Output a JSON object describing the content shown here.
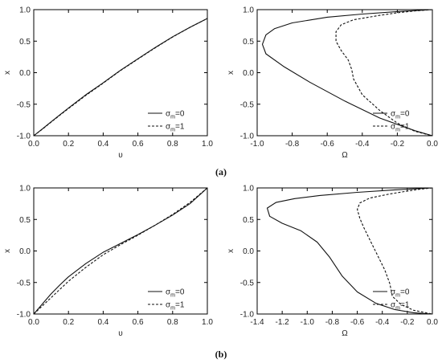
{
  "captions": [
    "(a)",
    "(b)"
  ],
  "chart_data": [
    {
      "type": "line",
      "panel": "a-left",
      "xlabel": "υ",
      "ylabel": "x",
      "xlim": [
        0.0,
        1.0
      ],
      "ylim": [
        -1.0,
        1.0
      ],
      "xticks": [
        "0.0",
        "0.2",
        "0.4",
        "0.6",
        "0.8",
        "1.0"
      ],
      "yticks": [
        "-1.0",
        "-0.5",
        "0.0",
        "0.5",
        "1.0"
      ],
      "legend_position": "bottom-right",
      "series": [
        {
          "name": "σm=0",
          "legend_main": "σ",
          "legend_sub": "m",
          "legend_rest": "=0",
          "style": "solid",
          "x": [
            0.0,
            0.05,
            0.1,
            0.15,
            0.2,
            0.3,
            0.4,
            0.5,
            0.6,
            0.7,
            0.8,
            0.9,
            1.0
          ],
          "y": [
            -1.0,
            -0.89,
            -0.78,
            -0.67,
            -0.56,
            -0.35,
            -0.16,
            0.04,
            0.22,
            0.4,
            0.57,
            0.72,
            0.86
          ]
        },
        {
          "name": "σm=1",
          "legend_main": "σ",
          "legend_sub": "m",
          "legend_rest": "=1",
          "style": "dashed",
          "x": [
            0.0,
            0.05,
            0.1,
            0.15,
            0.2,
            0.3,
            0.4,
            0.5,
            0.6,
            0.7,
            0.8,
            0.9,
            1.0
          ],
          "y": [
            -1.0,
            -0.895,
            -0.785,
            -0.675,
            -0.57,
            -0.36,
            -0.165,
            0.035,
            0.215,
            0.395,
            0.565,
            0.72,
            0.86
          ]
        }
      ]
    },
    {
      "type": "line",
      "panel": "a-right",
      "xlabel": "Ω",
      "ylabel": "x",
      "xlim": [
        -1.0,
        0.0
      ],
      "ylim": [
        -1.0,
        1.0
      ],
      "xticks": [
        "-1.0",
        "-0.8",
        "-0.6",
        "-0.4",
        "-0.2",
        "0.0"
      ],
      "yticks": [
        "-1.0",
        "-0.5",
        "0.0",
        "0.5",
        "1.0"
      ],
      "legend_position": "bottom-right",
      "series": [
        {
          "name": "σm=0",
          "legend_main": "σ",
          "legend_sub": "m",
          "legend_rest": "=0",
          "style": "solid",
          "x": [
            0.0,
            -0.2,
            -0.4,
            -0.6,
            -0.8,
            -0.9,
            -0.95,
            -0.97,
            -0.95,
            -0.85,
            -0.7,
            -0.5,
            -0.3,
            -0.1,
            0.0
          ],
          "y": [
            1.0,
            0.97,
            0.93,
            0.88,
            0.79,
            0.7,
            0.6,
            0.45,
            0.3,
            0.1,
            -0.15,
            -0.45,
            -0.72,
            -0.92,
            -1.0
          ]
        },
        {
          "name": "σm=1",
          "legend_main": "σ",
          "legend_sub": "m",
          "legend_rest": "=1",
          "style": "dashed",
          "x": [
            0.0,
            -0.1,
            -0.2,
            -0.3,
            -0.45,
            -0.52,
            -0.55,
            -0.55,
            -0.52,
            -0.48,
            -0.46,
            -0.45,
            -0.4,
            -0.3,
            -0.2,
            -0.1,
            0.0
          ],
          "y": [
            1.0,
            0.98,
            0.95,
            0.91,
            0.84,
            0.76,
            0.65,
            0.5,
            0.35,
            0.2,
            0.05,
            -0.1,
            -0.35,
            -0.6,
            -0.8,
            -0.93,
            -1.0
          ]
        }
      ]
    },
    {
      "type": "line",
      "panel": "b-left",
      "xlabel": "υ",
      "ylabel": "x",
      "xlim": [
        0.0,
        1.0
      ],
      "ylim": [
        -1.0,
        1.0
      ],
      "xticks": [
        "0.0",
        "0.2",
        "0.4",
        "0.6",
        "0.8",
        "1.0"
      ],
      "yticks": [
        "-1.0",
        "-0.5",
        "0.0",
        "0.5",
        "1.0"
      ],
      "legend_position": "bottom-right",
      "series": [
        {
          "name": "σm=0",
          "legend_main": "σ",
          "legend_sub": "m",
          "legend_rest": "=0",
          "style": "solid",
          "x": [
            0.0,
            0.05,
            0.1,
            0.15,
            0.2,
            0.3,
            0.4,
            0.5,
            0.6,
            0.7,
            0.8,
            0.9,
            1.0
          ],
          "y": [
            -1.0,
            -0.84,
            -0.68,
            -0.54,
            -0.41,
            -0.2,
            -0.02,
            0.12,
            0.26,
            0.41,
            0.57,
            0.75,
            1.0
          ]
        },
        {
          "name": "σm=1",
          "legend_main": "σ",
          "legend_sub": "m",
          "legend_rest": "=1",
          "style": "dashed",
          "x": [
            0.0,
            0.05,
            0.1,
            0.15,
            0.2,
            0.3,
            0.4,
            0.5,
            0.6,
            0.7,
            0.8,
            0.9,
            1.0
          ],
          "y": [
            -1.0,
            -0.87,
            -0.74,
            -0.61,
            -0.48,
            -0.26,
            -0.06,
            0.1,
            0.25,
            0.41,
            0.58,
            0.77,
            1.0
          ]
        }
      ]
    },
    {
      "type": "line",
      "panel": "b-right",
      "xlabel": "Ω",
      "ylabel": "x",
      "xlim": [
        -1.4,
        0.0
      ],
      "ylim": [
        -1.0,
        1.0
      ],
      "xticks": [
        "-1.4",
        "-1.2",
        "-1.0",
        "-0.8",
        "-0.6",
        "-0.4",
        "-0.2",
        "0.0"
      ],
      "yticks": [
        "-1.0",
        "-0.5",
        "0.0",
        "0.5",
        "1.0"
      ],
      "legend_position": "bottom-right",
      "series": [
        {
          "name": "σm=0",
          "legend_main": "σ",
          "legend_sub": "m",
          "legend_rest": "=0",
          "style": "solid",
          "x": [
            0.0,
            -0.3,
            -0.6,
            -0.9,
            -1.1,
            -1.25,
            -1.32,
            -1.3,
            -1.2,
            -1.05,
            -0.92,
            -0.82,
            -0.72,
            -0.6,
            -0.45,
            -0.3,
            -0.15,
            0.0
          ],
          "y": [
            1.0,
            0.97,
            0.93,
            0.88,
            0.83,
            0.77,
            0.68,
            0.55,
            0.44,
            0.32,
            0.14,
            -0.1,
            -0.4,
            -0.65,
            -0.83,
            -0.93,
            -0.98,
            -1.0
          ]
        },
        {
          "name": "σm=1",
          "legend_main": "σ",
          "legend_sub": "m",
          "legend_rest": "=1",
          "style": "dashed",
          "x": [
            0.0,
            -0.1,
            -0.2,
            -0.35,
            -0.5,
            -0.58,
            -0.6,
            -0.58,
            -0.55,
            -0.5,
            -0.45,
            -0.38,
            -0.34,
            -0.32,
            -0.25,
            -0.15,
            0.0
          ],
          "y": [
            1.0,
            0.98,
            0.95,
            0.9,
            0.84,
            0.76,
            0.66,
            0.52,
            0.38,
            0.18,
            -0.02,
            -0.3,
            -0.52,
            -0.72,
            -0.85,
            -0.94,
            -1.0
          ]
        }
      ]
    }
  ]
}
